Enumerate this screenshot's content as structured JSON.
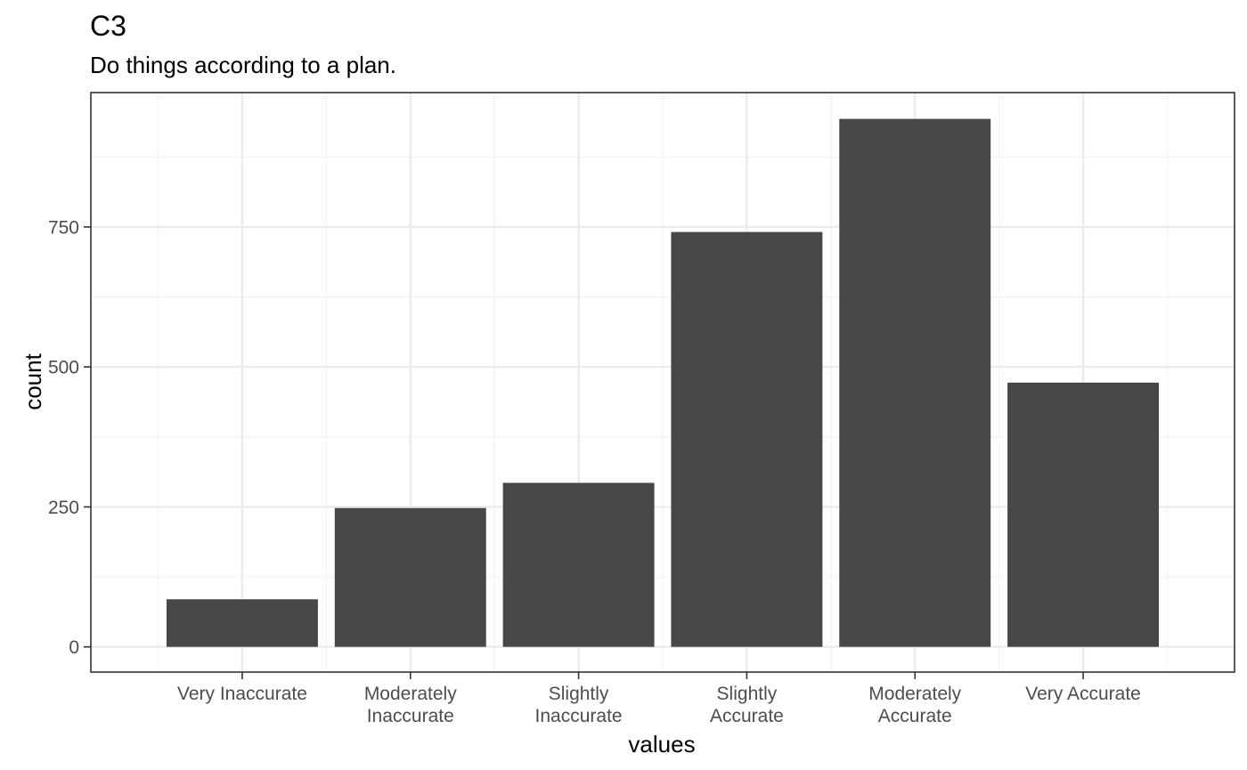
{
  "chart_data": {
    "type": "bar",
    "title": "C3",
    "subtitle": "Do things according to a plan.",
    "xlabel": "values",
    "ylabel": "count",
    "categories": [
      [
        "Very Inaccurate"
      ],
      [
        "Moderately",
        "Inaccurate"
      ],
      [
        "Slightly",
        "Inaccurate"
      ],
      [
        "Slightly",
        "Accurate"
      ],
      [
        "Moderately",
        "Accurate"
      ],
      [
        "Very Accurate"
      ]
    ],
    "values": [
      85,
      248,
      293,
      741,
      943,
      472
    ],
    "ylim": [
      -45,
      990
    ],
    "yticks": [
      0,
      250,
      500,
      750
    ],
    "grid": true,
    "bar_color": "#474747",
    "grid_major_color": "#ebebeb",
    "grid_minor_color": "#f2f2f2",
    "panel_border_color": "#333333"
  }
}
